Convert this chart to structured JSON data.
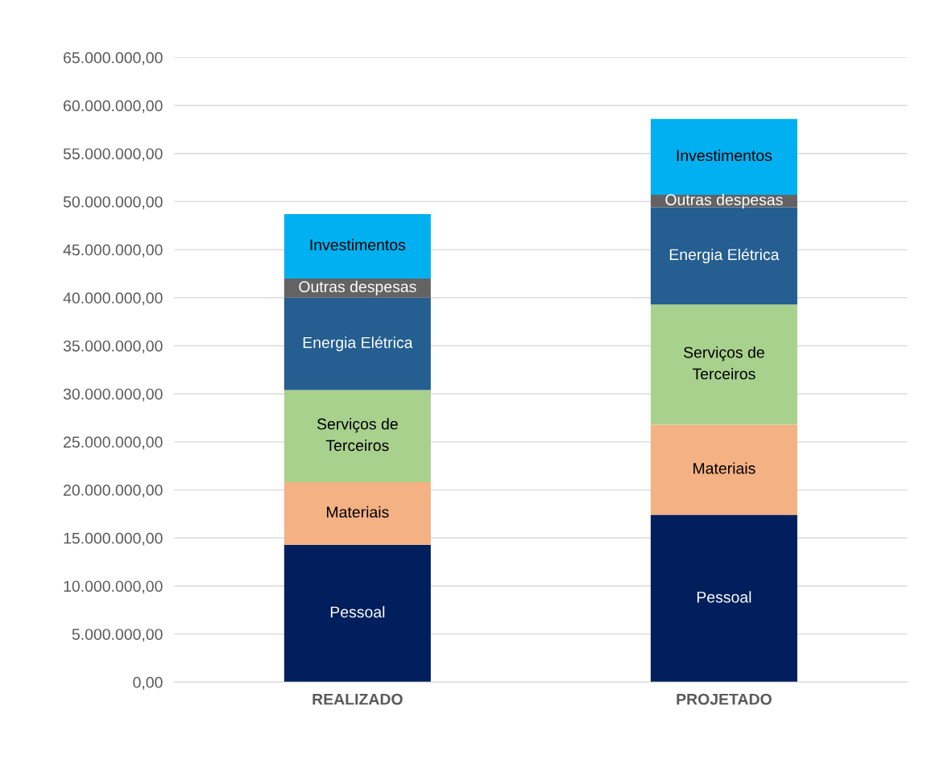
{
  "chart_data": {
    "type": "bar",
    "stacked": true,
    "categories": [
      "REALIZADO",
      "PROJETADO"
    ],
    "series": [
      {
        "name": "Pessoal",
        "color": "#001f5c",
        "values": [
          14300000,
          17400000
        ]
      },
      {
        "name": "Materiais",
        "color": "#f4b183",
        "values": [
          6500000,
          9400000
        ]
      },
      {
        "name": "Serviços de\nTerceiros",
        "color": "#a9d18e",
        "values": [
          9600000,
          12500000
        ]
      },
      {
        "name": "Energia Elétrica",
        "color": "#255e91",
        "values": [
          9600000,
          10100000
        ]
      },
      {
        "name": "Outras despesas",
        "color": "#636363",
        "values": [
          2000000,
          1300000
        ]
      },
      {
        "name": "Investimentos",
        "color": "#00b0f0",
        "values": [
          6700000,
          7900000
        ]
      }
    ],
    "ylim": [
      0,
      65000000
    ],
    "yticks": [
      {
        "value": 0,
        "label": "0,00"
      },
      {
        "value": 5000000,
        "label": "5.000.000,00"
      },
      {
        "value": 10000000,
        "label": "10.000.000,00"
      },
      {
        "value": 15000000,
        "label": "15.000.000,00"
      },
      {
        "value": 20000000,
        "label": "20.000.000,00"
      },
      {
        "value": 25000000,
        "label": "25.000.000,00"
      },
      {
        "value": 30000000,
        "label": "30.000.000,00"
      },
      {
        "value": 35000000,
        "label": "35.000.000,00"
      },
      {
        "value": 40000000,
        "label": "40.000.000,00"
      },
      {
        "value": 45000000,
        "label": "45.000.000,00"
      },
      {
        "value": 50000000,
        "label": "50.000.000,00"
      },
      {
        "value": 55000000,
        "label": "55.000.000,00"
      },
      {
        "value": 60000000,
        "label": "60.000.000,00"
      },
      {
        "value": 65000000,
        "label": "65.000.000,00"
      }
    ],
    "grid": "y"
  }
}
